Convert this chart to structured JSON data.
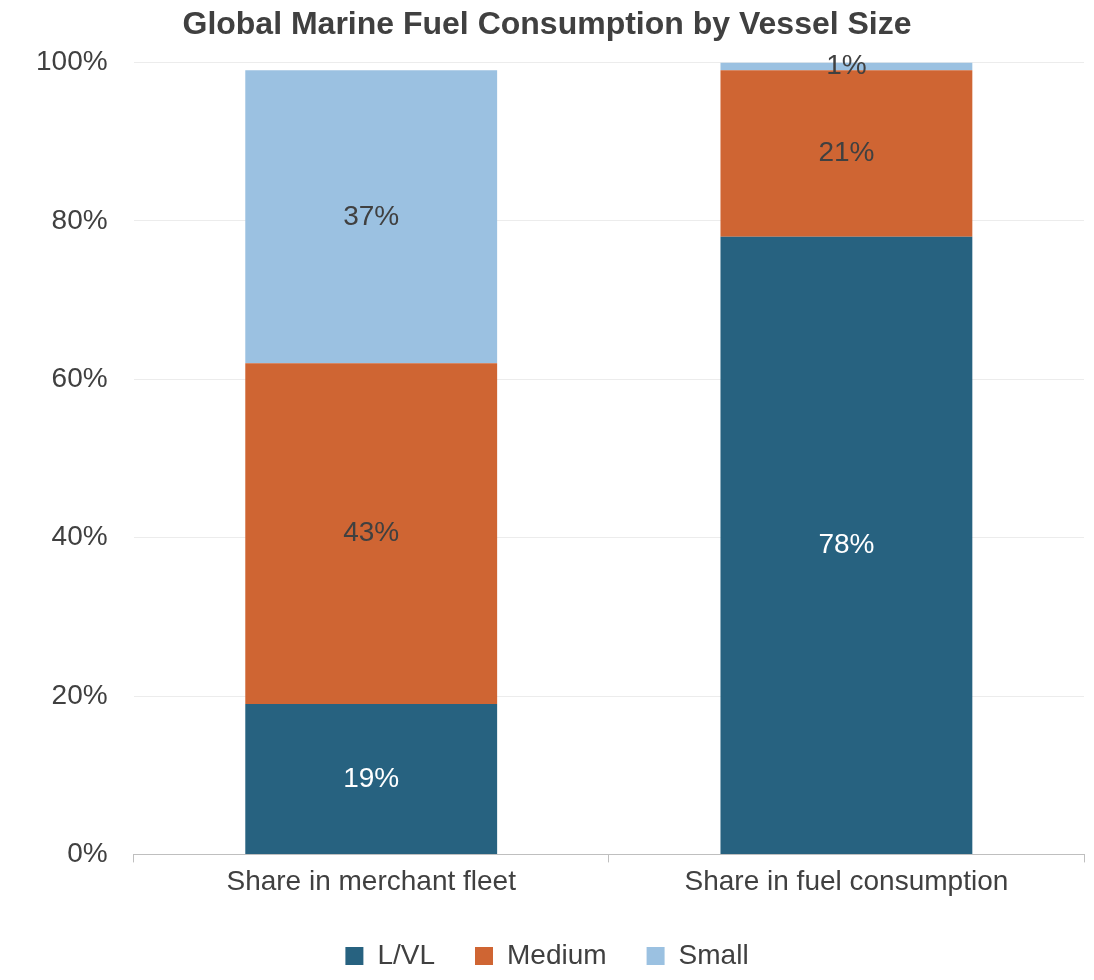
{
  "chart_data": {
    "type": "bar",
    "title": "Global Marine Fuel Consumption by Vessel Size",
    "categories": [
      "Share in merchant fleet",
      "Share in fuel consumption"
    ],
    "series": [
      {
        "name": "L/VL",
        "color": "#276280",
        "values": [
          19,
          78
        ],
        "value_labels": [
          "19%",
          "78%"
        ]
      },
      {
        "name": "Medium",
        "color": "#cf6533",
        "values": [
          43,
          21
        ],
        "value_labels": [
          "43%",
          "21%"
        ]
      },
      {
        "name": "Small",
        "color": "#9bc1e1",
        "values": [
          37,
          1
        ],
        "value_labels": [
          "37%",
          "1%"
        ]
      }
    ],
    "stacked": true,
    "ylim": [
      0,
      100
    ],
    "yticks": [
      {
        "value": 0,
        "label": "0%"
      },
      {
        "value": 20,
        "label": "20%"
      },
      {
        "value": 40,
        "label": "40%"
      },
      {
        "value": 60,
        "label": "60%"
      },
      {
        "value": 80,
        "label": "80%"
      },
      {
        "value": 100,
        "label": "100%"
      }
    ],
    "grid": "y",
    "legend": "bottom"
  }
}
